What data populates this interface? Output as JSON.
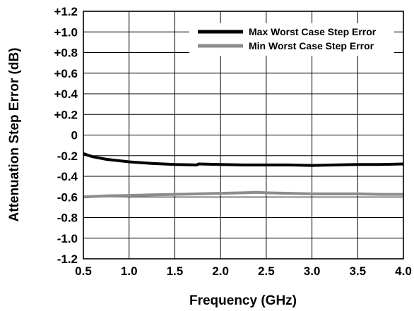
{
  "chart_data": {
    "type": "line",
    "xlabel": "Frequency (GHz)",
    "ylabel": "Attenuation Step Error (dB)",
    "xlim": [
      0.5,
      4.0
    ],
    "ylim": [
      -1.2,
      1.2
    ],
    "x_ticks": [
      0.5,
      1.0,
      1.5,
      2.0,
      2.5,
      3.0,
      3.5,
      4.0
    ],
    "x_tick_labels": [
      "0.5",
      "1.0",
      "1.5",
      "2.0",
      "2.5",
      "3.0",
      "3.5",
      "4.0"
    ],
    "y_ticks": [
      1.2,
      1.0,
      0.8,
      0.6,
      0.4,
      0.2,
      0,
      -0.2,
      -0.4,
      -0.6,
      -0.8,
      -1.0,
      -1.2
    ],
    "y_tick_labels": [
      "+1.2",
      "+1.0",
      "+0.8",
      "+0.6",
      "+0.4",
      "+0.2",
      "0",
      "-0.2",
      "-0.4",
      "-0.6",
      "-0.8",
      "-1.0",
      "-1.2"
    ],
    "grid": true,
    "legend_position": "top-right",
    "series": [
      {
        "name": "Max Worst Case Step Error",
        "color": "#000000",
        "x": [
          0.5,
          0.6,
          0.75,
          1.0,
          1.25,
          1.5,
          1.74,
          1.76,
          2.0,
          2.25,
          2.5,
          2.75,
          3.0,
          3.25,
          3.5,
          3.75,
          4.0
        ],
        "y": [
          -0.18,
          -0.21,
          -0.235,
          -0.26,
          -0.275,
          -0.285,
          -0.29,
          -0.28,
          -0.285,
          -0.29,
          -0.29,
          -0.29,
          -0.295,
          -0.29,
          -0.285,
          -0.285,
          -0.28
        ]
      },
      {
        "name": "Min Worst Case Step Error",
        "color": "#8c8c8c",
        "x": [
          0.5,
          0.75,
          1.0,
          1.25,
          1.5,
          1.75,
          2.0,
          2.25,
          2.4,
          2.5,
          2.75,
          3.0,
          3.25,
          3.5,
          3.75,
          4.0
        ],
        "y": [
          -0.6,
          -0.59,
          -0.585,
          -0.58,
          -0.575,
          -0.57,
          -0.565,
          -0.56,
          -0.555,
          -0.56,
          -0.565,
          -0.57,
          -0.57,
          -0.57,
          -0.575,
          -0.575
        ]
      }
    ]
  }
}
